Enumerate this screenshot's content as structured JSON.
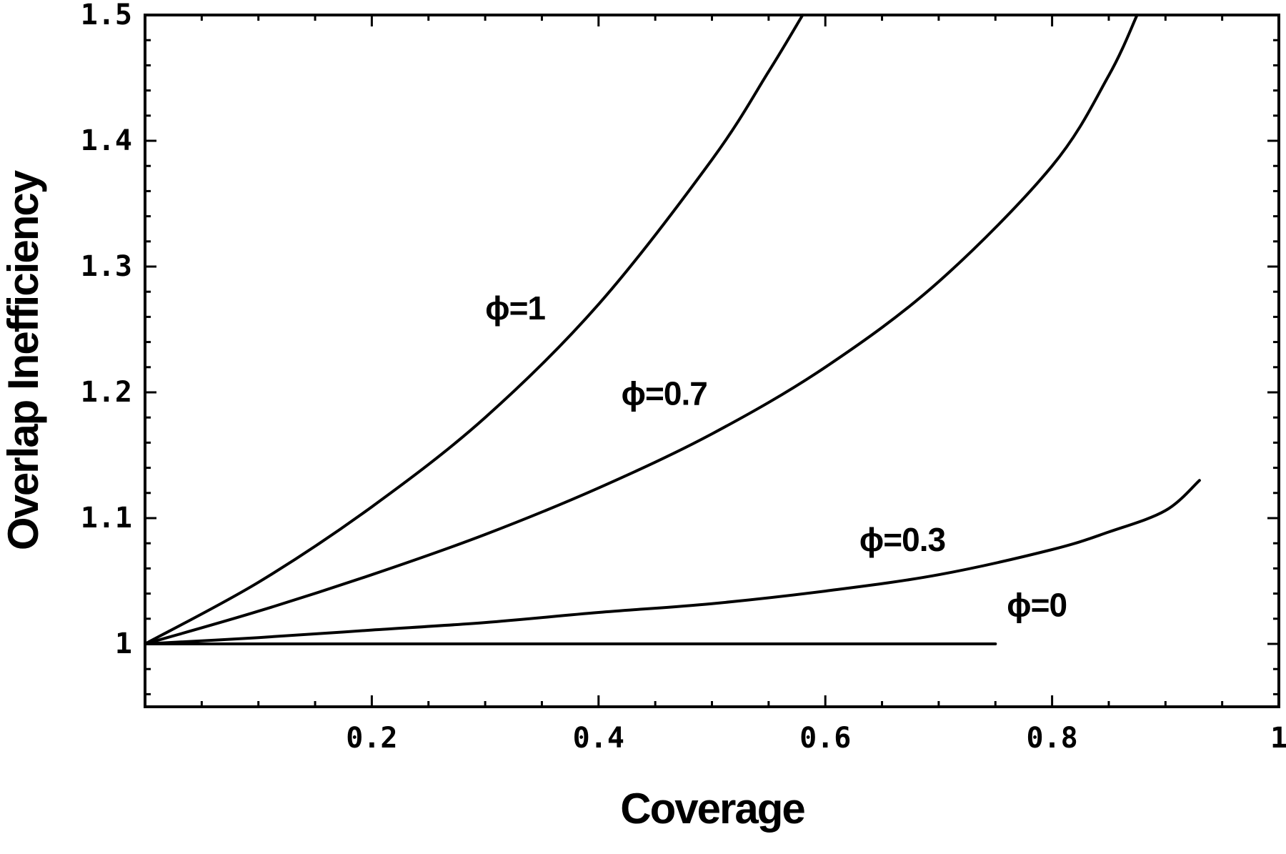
{
  "chart_data": {
    "type": "line",
    "xlabel": "Coverage",
    "ylabel": "Overlap Inefficiency",
    "xlim": [
      0,
      1
    ],
    "ylim": [
      0.95,
      1.5
    ],
    "x_ticks": [
      {
        "value": 0.2,
        "label": "0.2"
      },
      {
        "value": 0.4,
        "label": "0.4"
      },
      {
        "value": 0.6,
        "label": "0.6"
      },
      {
        "value": 0.8,
        "label": "0.8"
      },
      {
        "value": 1.0,
        "label": "1"
      }
    ],
    "y_ticks": [
      {
        "value": 1.0,
        "label": "1"
      },
      {
        "value": 1.1,
        "label": "1.1"
      },
      {
        "value": 1.2,
        "label": "1.2"
      },
      {
        "value": 1.3,
        "label": "1.3"
      },
      {
        "value": 1.4,
        "label": "1.4"
      },
      {
        "value": 1.5,
        "label": "1.5"
      }
    ],
    "grid": false,
    "series": [
      {
        "name": "ϕ=1",
        "x": [
          0,
          0.1,
          0.2,
          0.3,
          0.4,
          0.5,
          0.55,
          0.58
        ],
        "y": [
          1.0,
          1.049,
          1.109,
          1.18,
          1.27,
          1.385,
          1.455,
          1.5
        ]
      },
      {
        "name": "ϕ=0.7",
        "x": [
          0,
          0.1,
          0.2,
          0.3,
          0.4,
          0.5,
          0.6,
          0.7,
          0.8,
          0.85,
          0.875
        ],
        "y": [
          1.0,
          1.026,
          1.055,
          1.087,
          1.124,
          1.167,
          1.22,
          1.288,
          1.38,
          1.452,
          1.5
        ]
      },
      {
        "name": "ϕ=0.3",
        "x": [
          0,
          0.1,
          0.2,
          0.3,
          0.4,
          0.5,
          0.6,
          0.7,
          0.8,
          0.85,
          0.9,
          0.93
        ],
        "y": [
          1.0,
          1.005,
          1.011,
          1.017,
          1.025,
          1.032,
          1.042,
          1.055,
          1.075,
          1.089,
          1.106,
          1.13
        ]
      },
      {
        "name": "ϕ=0",
        "x": [
          0,
          0.75
        ],
        "y": [
          1.0,
          1.0
        ]
      }
    ],
    "annotations": [
      {
        "text": "ϕ=1",
        "x": 0.3,
        "y": 1.258
      },
      {
        "text": "ϕ=0.7",
        "x": 0.42,
        "y": 1.19
      },
      {
        "text": "ϕ=0.3",
        "x": 0.63,
        "y": 1.074
      },
      {
        "text": "ϕ=0",
        "x": 0.76,
        "y": 1.022
      }
    ]
  }
}
